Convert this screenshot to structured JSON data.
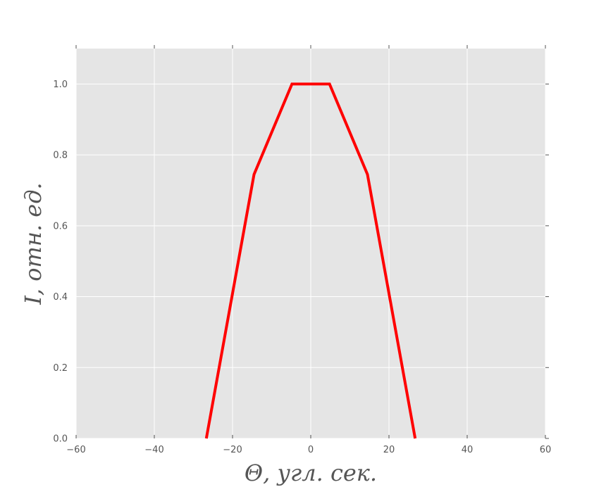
{
  "chart_data": {
    "type": "line",
    "title": "",
    "xlabel": "Θ, угл. сек.",
    "ylabel": "I, отн. ед.",
    "xlim": [
      -60,
      60
    ],
    "ylim": [
      0,
      1.1
    ],
    "xticks": [
      -60,
      -40,
      -20,
      0,
      20,
      40,
      60
    ],
    "yticks": [
      0.0,
      0.2,
      0.4,
      0.6,
      0.8,
      1.0
    ],
    "xtick_labels": [
      "−60",
      "−40",
      "−20",
      "0",
      "20",
      "40",
      "60"
    ],
    "ytick_labels": [
      "0.0",
      "0.2",
      "0.4",
      "0.6",
      "0.8",
      "1.0"
    ],
    "grid": true,
    "style": {
      "background": "#e5e5e5",
      "grid_color": "#ffffff",
      "line_color": "#ff0000",
      "text_color": "#555555"
    },
    "series": [
      {
        "x": [
          -26.7,
          -14.5,
          -4.8,
          4.8,
          14.5,
          26.7
        ],
        "y": [
          0.0,
          0.745,
          1.0,
          1.0,
          0.745,
          0.0
        ]
      }
    ]
  }
}
